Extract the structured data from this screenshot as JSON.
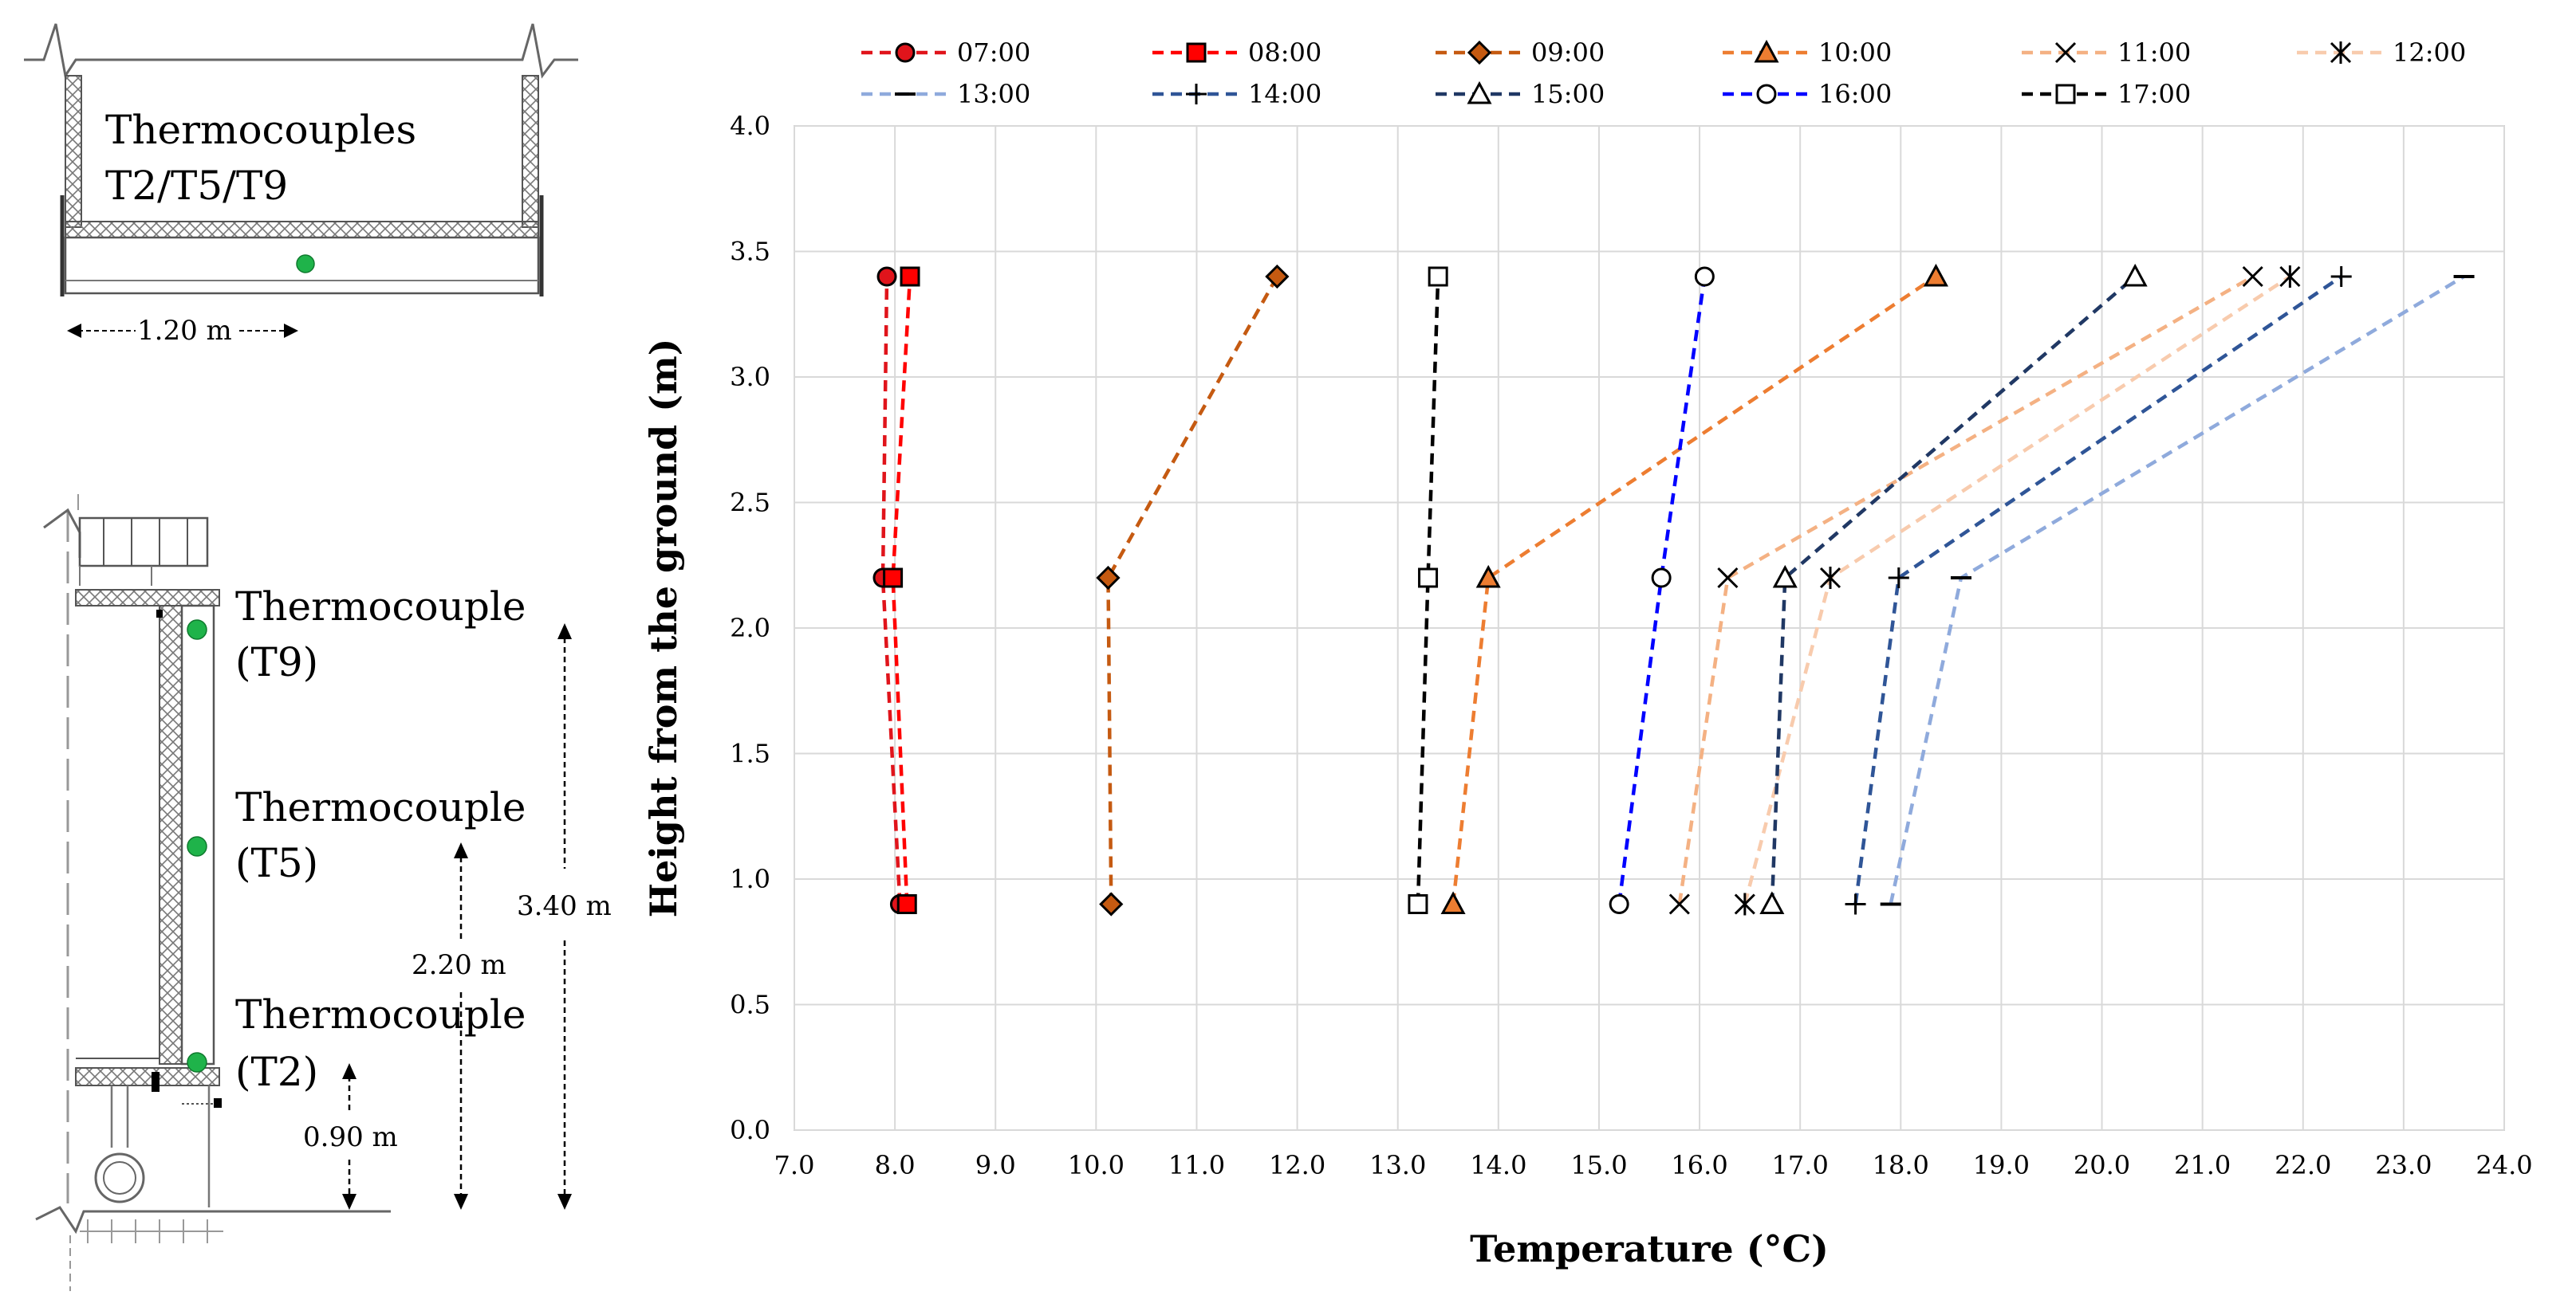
{
  "diagram": {
    "top_label_line1": "Thermocouples",
    "top_label_line2": "T2/T5/T9",
    "width_label": "1.20 m",
    "t9_label_line1": "Thermocouple",
    "t9_label_line2": "(T9)",
    "t5_label_line1": "Thermocouple",
    "t5_label_line2": "(T5)",
    "t2_label_line1": "Thermocouple",
    "t2_label_line2": "(T2)",
    "height_340": "3.40 m",
    "height_220": "2.20 m",
    "height_090": "0.90 m",
    "sensor_color": "#1fb34a"
  },
  "chart_data": {
    "type": "line",
    "xlabel": "Temperature (°C)",
    "ylabel": "Height from the ground (m)",
    "xlim": [
      7.0,
      24.0
    ],
    "ylim": [
      0.0,
      4.0
    ],
    "x_ticks": [
      "7.0",
      "8.0",
      "9.0",
      "10.0",
      "11.0",
      "12.0",
      "13.0",
      "14.0",
      "15.0",
      "16.0",
      "17.0",
      "18.0",
      "19.0",
      "20.0",
      "21.0",
      "22.0",
      "23.0",
      "24.0"
    ],
    "y_ticks": [
      "0.0",
      "0.5",
      "1.0",
      "1.5",
      "2.0",
      "2.5",
      "3.0",
      "3.5",
      "4.0"
    ],
    "grid": true,
    "heights": [
      0.9,
      2.2,
      3.4
    ],
    "series": [
      {
        "name": "07:00",
        "color": "#e0141b",
        "marker": "circle",
        "fill": "#e0141b",
        "temps": [
          8.05,
          7.88,
          7.92
        ]
      },
      {
        "name": "08:00",
        "color": "#ff0000",
        "marker": "square",
        "fill": "#ff0000",
        "temps": [
          8.12,
          7.98,
          8.15
        ]
      },
      {
        "name": "09:00",
        "color": "#c55a11",
        "marker": "diamond",
        "fill": "#c55a11",
        "temps": [
          10.15,
          10.12,
          11.8
        ]
      },
      {
        "name": "10:00",
        "color": "#ed7d31",
        "marker": "triangle",
        "fill": "#ed7d31",
        "temps": [
          13.55,
          13.9,
          18.35
        ]
      },
      {
        "name": "11:00",
        "color": "#f4b183",
        "marker": "x",
        "fill": "none",
        "temps": [
          15.8,
          16.28,
          21.5
        ]
      },
      {
        "name": "12:00",
        "color": "#f8cbad",
        "marker": "star",
        "fill": "none",
        "temps": [
          16.45,
          17.3,
          21.87
        ]
      },
      {
        "name": "13:00",
        "color": "#8faadc",
        "marker": "dash",
        "fill": "none",
        "temps": [
          17.9,
          18.6,
          23.6
        ]
      },
      {
        "name": "14:00",
        "color": "#2f5597",
        "marker": "plus",
        "fill": "none",
        "temps": [
          17.55,
          17.98,
          22.38
        ]
      },
      {
        "name": "15:00",
        "color": "#203864",
        "marker": "triangle-open",
        "fill": "#ffffff",
        "temps": [
          16.72,
          16.85,
          20.33
        ]
      },
      {
        "name": "16:00",
        "color": "#0000ff",
        "marker": "circle-open",
        "fill": "#ffffff",
        "temps": [
          15.2,
          15.62,
          16.05
        ]
      },
      {
        "name": "17:00",
        "color": "#000000",
        "marker": "square-open",
        "fill": "#ffffff",
        "temps": [
          13.2,
          13.3,
          13.4
        ]
      }
    ]
  }
}
